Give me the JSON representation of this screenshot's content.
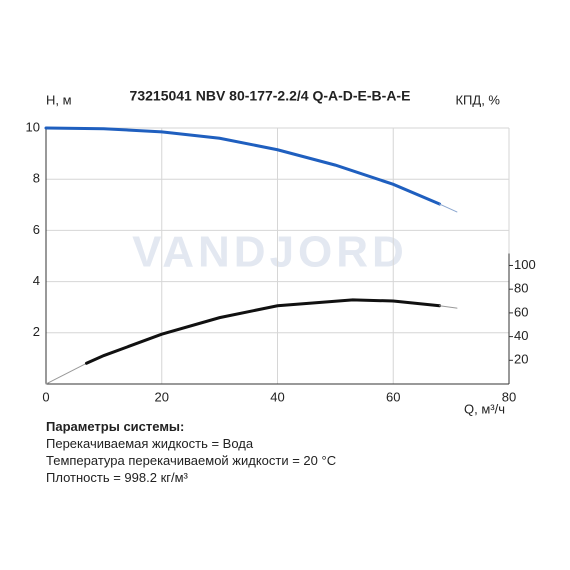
{
  "chart_data": {
    "type": "line",
    "title": "73215041 NBV 80-177-2.2/4 Q-A-D-E-B-A-E",
    "ylabel": "H, м",
    "y2label": "КПД, %",
    "xlabel": "Q, м³/ч",
    "watermark": "VANDJORD",
    "xlim": [
      0,
      80
    ],
    "xticks": [
      0,
      20,
      40,
      60,
      80
    ],
    "ylim": [
      0,
      10
    ],
    "yticks": [
      2,
      4,
      6,
      8,
      10
    ],
    "y2lim": [
      0,
      216
    ],
    "y2ticks": [
      20,
      40,
      60,
      80,
      100
    ],
    "grid": true,
    "series": [
      {
        "color": "#1f5fbf",
        "width": 3,
        "x": [
          0,
          10,
          20,
          30,
          40,
          50,
          60,
          68
        ],
        "values": [
          10,
          9.97,
          9.85,
          9.6,
          9.15,
          8.55,
          7.8,
          7.03
        ]
      },
      {
        "color": "#8aa6cf",
        "width": 1,
        "x": [
          68,
          71
        ],
        "values": [
          7.03,
          6.72
        ]
      },
      {
        "color": "#999999",
        "width": 1,
        "axis": "y2",
        "x": [
          0,
          7
        ],
        "values": [
          0,
          17.5
        ]
      },
      {
        "color": "#111111",
        "width": 3,
        "axis": "y2",
        "x": [
          7,
          10,
          20,
          30,
          40,
          53,
          60,
          68
        ],
        "values": [
          17.5,
          24,
          42,
          56,
          66,
          71,
          70,
          66
        ]
      },
      {
        "color": "#999999",
        "width": 1,
        "axis": "y2",
        "x": [
          68,
          71
        ],
        "values": [
          66,
          64
        ]
      }
    ]
  },
  "notes": {
    "heading": "Параметры системы:",
    "lines": [
      "Перекачиваемая жидкость = Вода",
      "Температура перекачиваемой жидкости = 20 °C",
      "Плотность = 998.2 кг/м³"
    ]
  }
}
